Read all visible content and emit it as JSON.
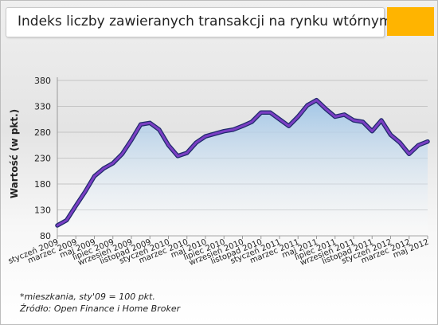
{
  "title": "Indeks liczby zawieranych transakcji na rynku wtórnym*",
  "notes": {
    "line1": "*mieszkania, sty'09 = 100 pkt.",
    "line2": "Źródło: Open Finance i Home Broker"
  },
  "colors": {
    "accent": "#ffb400",
    "line": "#7b3fc4",
    "area_top": "#a9cbe8"
  },
  "chart_data": {
    "type": "area",
    "title": "Indeks liczby zawieranych transakcji na rynku wtórnym*",
    "xlabel": "",
    "ylabel": "Wartość (w pkt.)",
    "ylim": [
      80,
      380
    ],
    "yticks": [
      80,
      130,
      180,
      230,
      280,
      330,
      380
    ],
    "grid": true,
    "x": [
      "styczeń 2009",
      "luty 2009",
      "marzec 2009",
      "kwiecień 2009",
      "maj 2009",
      "czerwiec 2009",
      "lipiec 2009",
      "sierpień 2009",
      "wrzesień 2009",
      "październik 2009",
      "listopad 2009",
      "grudzień 2009",
      "styczeń 2010",
      "luty 2010",
      "marzec 2010",
      "kwiecień 2010",
      "maj 2010",
      "czerwiec 2010",
      "lipiec 2010",
      "sierpień 2010",
      "wrzesień 2010",
      "październik 2010",
      "listopad 2010",
      "grudzień 2010",
      "styczeń 2011",
      "luty 2011",
      "marzec 2011",
      "kwiecień 2011",
      "maj 2011",
      "czerwiec 2011",
      "lipiec 2011",
      "sierpień 2011",
      "wrzesień 2011",
      "październik 2011",
      "listopad 2011",
      "grudzień 2011",
      "styczeń 2012",
      "luty 2012",
      "marzec 2012",
      "kwiecień 2012",
      "maj 2012"
    ],
    "x_tick_labels": [
      "styczeń 2009",
      "marzec 2009",
      "maj 2009",
      "lipiec 2009",
      "wrzesień 2009",
      "listopad 2009",
      "styczeń 2010",
      "marzec 2010",
      "maj 2010",
      "lipiec 2010",
      "wrzesień 2010",
      "listopad 2010",
      "styczeń 2011",
      "marzec 2011",
      "maj 2011",
      "lipiec 2011",
      "wrzesień 2011",
      "listopad 2011",
      "styczeń 2012",
      "marzec 2012",
      "maj 2012"
    ],
    "series": [
      {
        "values": [
          100,
          110,
          138,
          165,
          195,
          210,
          220,
          238,
          265,
          295,
          298,
          285,
          255,
          234,
          240,
          260,
          272,
          277,
          282,
          285,
          292,
          300,
          318,
          318,
          305,
          292,
          310,
          332,
          342,
          325,
          310,
          314,
          303,
          300,
          282,
          303,
          275,
          260,
          238,
          255,
          262
        ]
      }
    ]
  }
}
